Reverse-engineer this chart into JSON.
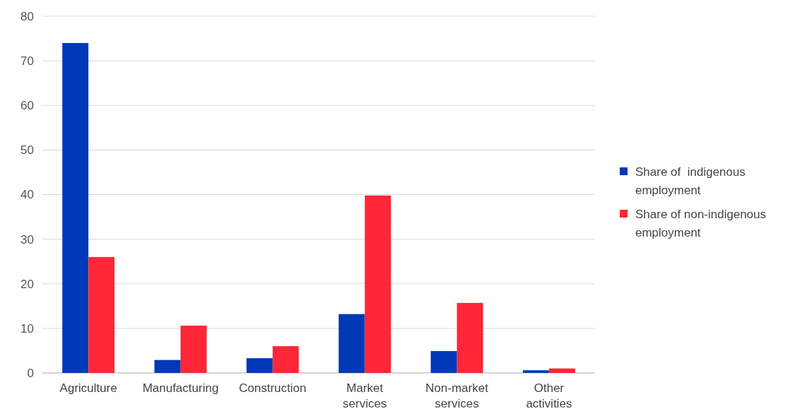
{
  "chart_data": {
    "type": "bar",
    "categories": [
      "Agriculture",
      "Manufacturing",
      "Construction",
      "Market services",
      "Non-market services",
      "Other activities"
    ],
    "series": [
      {
        "name": "Share of  indigenous employment",
        "color": "#0039b7",
        "values": [
          74,
          2.9,
          3.3,
          13.2,
          4.9,
          0.6
        ]
      },
      {
        "name": "Share of non-indigenous employment",
        "color": "#ff2638",
        "values": [
          26,
          10.6,
          6,
          39.8,
          15.7,
          1
        ]
      }
    ],
    "ylim": [
      0,
      80
    ],
    "yticks": [
      0,
      10,
      20,
      30,
      40,
      50,
      60,
      70,
      80
    ],
    "grid": "y",
    "legend": "right"
  }
}
